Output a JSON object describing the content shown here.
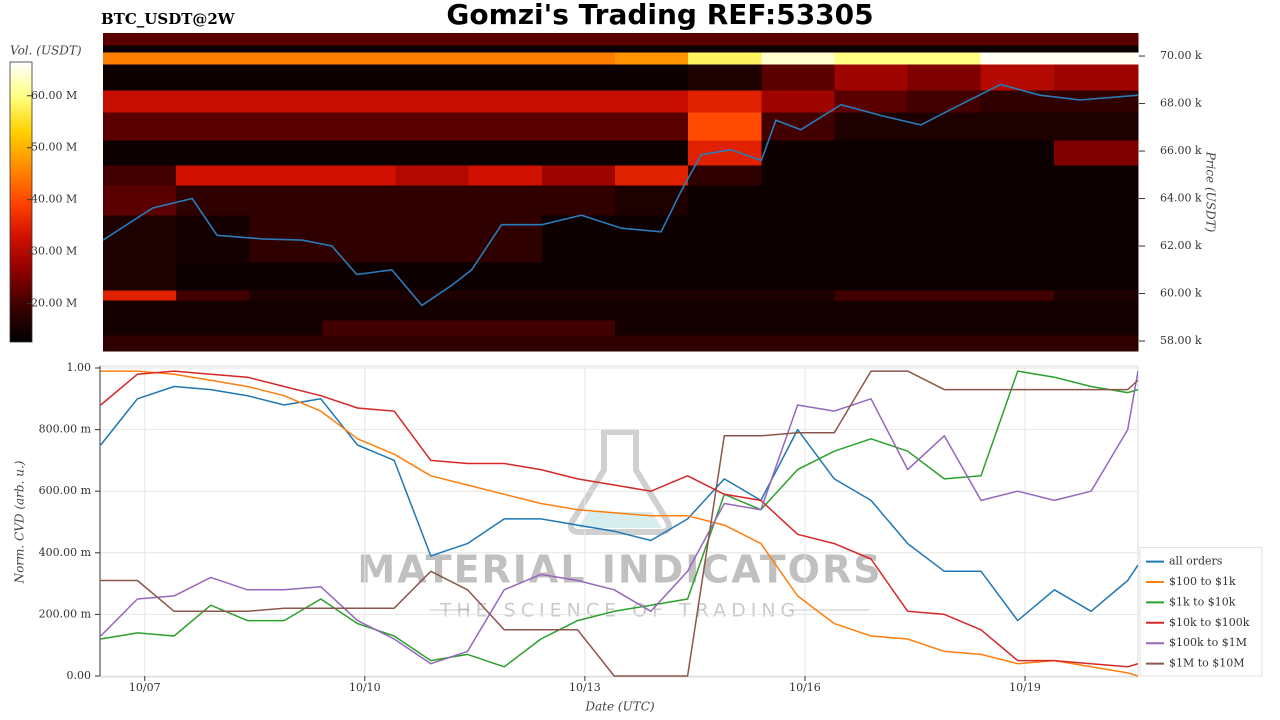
{
  "chart_data": [
    {
      "type": "heatmap",
      "label": "BTC_USDT@2W",
      "title": "Gomzi's Trading REF:53305",
      "zlabel": "Vol. (USDT)",
      "ylabel": "Price (USDT)",
      "xlim": [
        -0.61,
        13.54
      ],
      "ylim": [
        57580,
        70970
      ],
      "yticks": [
        {
          "value": 58000,
          "label": "58.00 k"
        },
        {
          "value": 60000,
          "label": "60.00 k"
        },
        {
          "value": 62000,
          "label": "62.00 k"
        },
        {
          "value": 64000,
          "label": "64.00 k"
        },
        {
          "value": 66000,
          "label": "66.00 k"
        },
        {
          "value": 68000,
          "label": "68.00 k"
        },
        {
          "value": 70000,
          "label": "70.00 k"
        }
      ],
      "zlim": [
        12600000,
        66500000
      ],
      "zticks": [
        {
          "value": 20000000,
          "label": "20.00 M"
        },
        {
          "value": 30000000,
          "label": "30.00 M"
        },
        {
          "value": 40000000,
          "label": "40.00 M"
        },
        {
          "value": 50000000,
          "label": "50.00 M"
        },
        {
          "value": 60000000,
          "label": "60.00 M"
        }
      ],
      "colorscale": [
        "#000000",
        "#3a0000",
        "#8b0000",
        "#d01000",
        "#ff4500",
        "#ff8c00",
        "#ffd000",
        "#ffff80",
        "#ffffff"
      ],
      "xbins": [
        -0.61,
        0.39,
        1.39,
        2.39,
        3.39,
        4.39,
        5.39,
        6.39,
        7.39,
        8.39,
        9.39,
        10.39,
        11.39,
        12.39,
        13.54
      ],
      "ybins": [
        57580,
        58250,
        58880,
        59730,
        60150,
        61330,
        63310,
        64570,
        65410,
        66460,
        67640,
        68570,
        69660,
        70170,
        70460,
        70970
      ],
      "z": [
        [
          18000000,
          18000000,
          18000000,
          18000000,
          18000000,
          18000000,
          18000000,
          18000000,
          18000000,
          18000000,
          18000000,
          18000000,
          18000000,
          18000000
        ],
        [
          15000000,
          15000000,
          15000000,
          20000000,
          20000000,
          20000000,
          20000000,
          15000000,
          15000000,
          15000000,
          15000000,
          15000000,
          15000000,
          15000000
        ],
        [
          15000000,
          15000000,
          15000000,
          15000000,
          15000000,
          15000000,
          15000000,
          15000000,
          15000000,
          15000000,
          15000000,
          15000000,
          15000000,
          15000000
        ],
        [
          35000000,
          20000000,
          16000000,
          16000000,
          16000000,
          16000000,
          16000000,
          16000000,
          16000000,
          16000000,
          20000000,
          20000000,
          20000000,
          16000000
        ],
        [
          16000000,
          14000000,
          14000000,
          14000000,
          14000000,
          14000000,
          14000000,
          14000000,
          14000000,
          14000000,
          14000000,
          14000000,
          14000000,
          14000000
        ],
        [
          16000000,
          15000000,
          18000000,
          18000000,
          18000000,
          18000000,
          14000000,
          14000000,
          14000000,
          14000000,
          14000000,
          14000000,
          14000000,
          14000000
        ],
        [
          22000000,
          18000000,
          18000000,
          18000000,
          18000000,
          18000000,
          18000000,
          16000000,
          14000000,
          14000000,
          14000000,
          14000000,
          14000000,
          14000000
        ],
        [
          20000000,
          33000000,
          33000000,
          33000000,
          30000000,
          33000000,
          28000000,
          35000000,
          18000000,
          14000000,
          14000000,
          14000000,
          14000000,
          14000000
        ],
        [
          14000000,
          14000000,
          14000000,
          14000000,
          14000000,
          14000000,
          14000000,
          14000000,
          35000000,
          14000000,
          14000000,
          14000000,
          14000000,
          25000000
        ],
        [
          22000000,
          22000000,
          22000000,
          22000000,
          22000000,
          22000000,
          22000000,
          22000000,
          40000000,
          20000000,
          16000000,
          16000000,
          16000000,
          16000000
        ],
        [
          32000000,
          32000000,
          32000000,
          32000000,
          32000000,
          32000000,
          32000000,
          32000000,
          35000000,
          28000000,
          22000000,
          20000000,
          18000000,
          18000000
        ],
        [
          14000000,
          14000000,
          14000000,
          14000000,
          14000000,
          14000000,
          14000000,
          14000000,
          16000000,
          22000000,
          28000000,
          25000000,
          30000000,
          28000000
        ],
        [
          45000000,
          45000000,
          45000000,
          45000000,
          45000000,
          45000000,
          45000000,
          47000000,
          58000000,
          64000000,
          60000000,
          60000000,
          66000000,
          66000000
        ],
        [
          14000000,
          14000000,
          14000000,
          14000000,
          14000000,
          14000000,
          14000000,
          14000000,
          14000000,
          14000000,
          14000000,
          14000000,
          14000000,
          14000000
        ],
        [
          22000000,
          22000000,
          22000000,
          22000000,
          22000000,
          22000000,
          22000000,
          22000000,
          22000000,
          22000000,
          22000000,
          22000000,
          22000000,
          22000000
        ]
      ],
      "line": {
        "color": "#2b7bba",
        "x": [
          -0.61,
          0.07,
          0.61,
          0.95,
          1.57,
          2.11,
          2.52,
          2.86,
          3.34,
          3.75,
          4.16,
          4.43,
          4.84,
          5.39,
          5.93,
          6.48,
          7.02,
          7.3,
          7.57,
          7.98,
          8.39,
          8.59,
          8.93,
          9.48,
          10.02,
          10.57,
          11.11,
          11.66,
          12.2,
          12.75,
          13.54
        ],
        "values": [
          62250,
          63600,
          64000,
          62450,
          62300,
          62250,
          62000,
          60800,
          61000,
          59500,
          60350,
          61000,
          62900,
          62900,
          63300,
          62750,
          62600,
          64350,
          65850,
          66050,
          65600,
          67300,
          66900,
          67950,
          67500,
          67100,
          67950,
          68800,
          68350,
          68150,
          68350
        ]
      }
    },
    {
      "type": "line",
      "xlabel": "Date (UTC)",
      "ylabel": "Norm. CVD (arb. u.)",
      "watermark": {
        "title": "MATERIAL INDICATORS",
        "subtitle": "THE SCIENCE OF TRADING"
      },
      "grid": true,
      "legend": "lower right",
      "xlim": [
        -0.61,
        13.54
      ],
      "ylim": [
        0,
        1
      ],
      "xticks": [
        {
          "value": 0,
          "label": "10/07"
        },
        {
          "value": 3,
          "label": "10/10"
        },
        {
          "value": 6,
          "label": "10/13"
        },
        {
          "value": 9,
          "label": "10/16"
        },
        {
          "value": 12,
          "label": "10/19"
        }
      ],
      "yticks": [
        {
          "value": 0,
          "label": "0.00"
        },
        {
          "value": 0.2,
          "label": "200.00 m"
        },
        {
          "value": 0.4,
          "label": "400.00 m"
        },
        {
          "value": 0.6,
          "label": "600.00 m"
        },
        {
          "value": 0.8,
          "label": "800.00 m"
        },
        {
          "value": 1,
          "label": "1.00"
        }
      ],
      "x": [
        -0.6,
        -0.1,
        0.4,
        0.9,
        1.4,
        1.9,
        2.4,
        2.9,
        3.4,
        3.9,
        4.4,
        4.9,
        5.4,
        5.9,
        6.4,
        6.9,
        7.4,
        7.9,
        8.4,
        8.9,
        9.4,
        9.9,
        10.4,
        10.9,
        11.4,
        11.9,
        12.4,
        12.9,
        13.4,
        13.54
      ],
      "series": [
        {
          "name": "all orders",
          "color": "#1f77b4",
          "values": [
            0.75,
            0.9,
            0.94,
            0.93,
            0.91,
            0.88,
            0.9,
            0.75,
            0.7,
            0.39,
            0.43,
            0.51,
            0.51,
            0.49,
            0.47,
            0.44,
            0.51,
            0.64,
            0.57,
            0.8,
            0.64,
            0.57,
            0.43,
            0.34,
            0.34,
            0.18,
            0.28,
            0.21,
            0.31,
            0.36
          ]
        },
        {
          "name": "$100 to $1k",
          "color": "#ff7f0e",
          "values": [
            0.99,
            0.99,
            0.98,
            0.96,
            0.94,
            0.91,
            0.86,
            0.77,
            0.72,
            0.65,
            0.62,
            0.59,
            0.56,
            0.54,
            0.53,
            0.52,
            0.52,
            0.49,
            0.43,
            0.26,
            0.17,
            0.13,
            0.12,
            0.08,
            0.07,
            0.04,
            0.05,
            0.03,
            0.01,
            0.0
          ]
        },
        {
          "name": "$1k to $10k",
          "color": "#2ca02c",
          "values": [
            0.12,
            0.14,
            0.13,
            0.23,
            0.18,
            0.18,
            0.25,
            0.17,
            0.13,
            0.05,
            0.07,
            0.03,
            0.12,
            0.18,
            0.21,
            0.23,
            0.25,
            0.59,
            0.54,
            0.67,
            0.73,
            0.77,
            0.73,
            0.64,
            0.65,
            0.99,
            0.97,
            0.94,
            0.92,
            0.93
          ]
        },
        {
          "name": "$10k to $100k",
          "color": "#d62728",
          "values": [
            0.88,
            0.98,
            0.99,
            0.98,
            0.97,
            0.94,
            0.91,
            0.87,
            0.86,
            0.7,
            0.69,
            0.69,
            0.67,
            0.64,
            0.62,
            0.6,
            0.65,
            0.59,
            0.57,
            0.46,
            0.43,
            0.38,
            0.21,
            0.2,
            0.15,
            0.05,
            0.05,
            0.04,
            0.03,
            0.04
          ]
        },
        {
          "name": "$100k to $1M",
          "color": "#9467bd",
          "values": [
            0.13,
            0.25,
            0.26,
            0.32,
            0.28,
            0.28,
            0.29,
            0.18,
            0.12,
            0.04,
            0.08,
            0.28,
            0.33,
            0.31,
            0.28,
            0.21,
            0.34,
            0.56,
            0.54,
            0.88,
            0.86,
            0.9,
            0.67,
            0.78,
            0.57,
            0.6,
            0.57,
            0.6,
            0.8,
            0.99
          ]
        },
        {
          "name": "$1M to $10M",
          "color": "#8c564b",
          "values": [
            0.31,
            0.31,
            0.21,
            0.21,
            0.21,
            0.22,
            0.22,
            0.22,
            0.22,
            0.34,
            0.28,
            0.15,
            0.15,
            0.15,
            0.0,
            0.0,
            0.0,
            0.78,
            0.78,
            0.79,
            0.79,
            0.99,
            0.99,
            0.93,
            0.93,
            0.93,
            0.93,
            0.93,
            0.93,
            0.96
          ]
        }
      ]
    }
  ]
}
